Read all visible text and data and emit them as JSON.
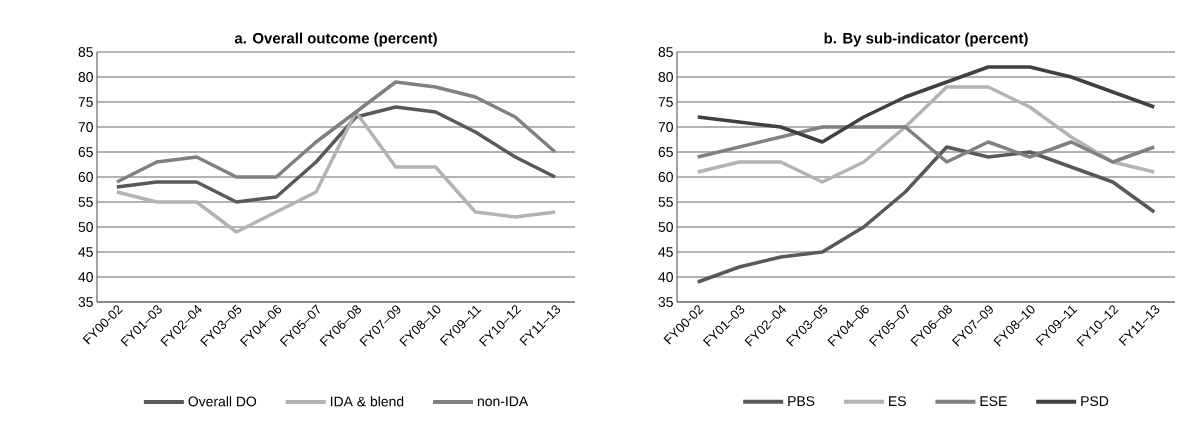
{
  "chart_data": [
    {
      "type": "line",
      "title": "a. Overall outcome (percent)",
      "categories": [
        "FY00-02",
        "FY01–03",
        "FY02–04",
        "FY03–05",
        "FY04–06",
        "FY05–07",
        "FY06–08",
        "FY07–09",
        "FY08–10",
        "FY09–11",
        "FY10–12",
        "FY11–13"
      ],
      "series": [
        {
          "name": "Overall DO",
          "color": "#595959",
          "values": [
            58,
            59,
            59,
            55,
            56,
            63,
            72,
            74,
            73,
            69,
            64,
            60
          ]
        },
        {
          "name": "IDA & blend",
          "color": "#b3b3b3",
          "values": [
            57,
            55,
            55,
            49,
            53,
            57,
            73,
            62,
            62,
            53,
            52,
            53
          ]
        },
        {
          "name": "non-IDA",
          "color": "#808080",
          "values": [
            59,
            63,
            64,
            60,
            60,
            67,
            73,
            79,
            78,
            76,
            72,
            65
          ]
        }
      ],
      "ylim": [
        35,
        85
      ],
      "yticks": [
        35,
        40,
        45,
        50,
        55,
        60,
        65,
        70,
        75,
        80,
        85
      ],
      "grid": "y",
      "legend": "bottom",
      "marker": "none",
      "line_style": "solid"
    },
    {
      "type": "line",
      "title": "b. By sub-indicator (percent)",
      "categories": [
        "FY00-02",
        "FY01–03",
        "FY02–04",
        "FY03–05",
        "FY04–06",
        "FY05–07",
        "FY06–08",
        "FY07–09",
        "FY08–10",
        "FY09–11",
        "FY10–12",
        "FY11–13"
      ],
      "series": [
        {
          "name": "PBS",
          "color": "#595959",
          "values": [
            39,
            42,
            44,
            45,
            50,
            57,
            66,
            64,
            65,
            62,
            59,
            53
          ]
        },
        {
          "name": "ES",
          "color": "#b3b3b3",
          "values": [
            61,
            63,
            63,
            59,
            63,
            70,
            78,
            78,
            74,
            68,
            63,
            61
          ]
        },
        {
          "name": "ESE",
          "color": "#808080",
          "values": [
            64,
            66,
            68,
            70,
            70,
            70,
            63,
            67,
            64,
            67,
            63,
            66
          ]
        },
        {
          "name": "PSD",
          "color": "#404040",
          "values": [
            72,
            71,
            70,
            67,
            72,
            76,
            79,
            82,
            82,
            80,
            77,
            74
          ]
        }
      ],
      "ylim": [
        35,
        85
      ],
      "yticks": [
        35,
        40,
        45,
        50,
        55,
        60,
        65,
        70,
        75,
        80,
        85
      ],
      "grid": "y",
      "legend": "bottom",
      "marker": "none",
      "line_style": "solid"
    }
  ]
}
